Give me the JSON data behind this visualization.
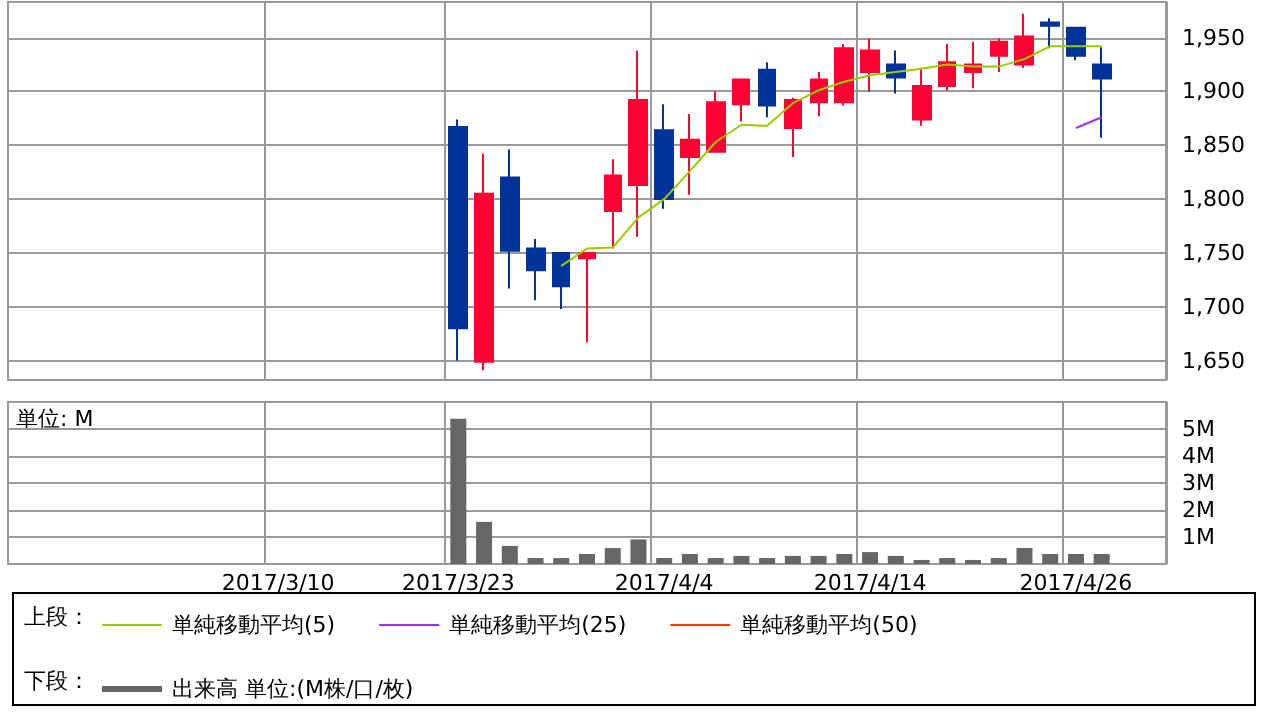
{
  "chart_data": [
    {
      "type": "candlestick",
      "categories": [
        null,
        null,
        null,
        null,
        null,
        null,
        null,
        null,
        null,
        null,
        "2017/3/10",
        null,
        null,
        null,
        null,
        null,
        null,
        "2017/3/23",
        null,
        null,
        null,
        null,
        null,
        null,
        null,
        "2017/4/4",
        null,
        null,
        null,
        null,
        null,
        null,
        null,
        "2017/4/14",
        null,
        null,
        null,
        null,
        null,
        null,
        null,
        "2017/4/26",
        null,
        null,
        null
      ],
      "ohlc": [
        null,
        null,
        null,
        null,
        null,
        null,
        null,
        null,
        null,
        null,
        null,
        null,
        null,
        null,
        null,
        null,
        null,
        [
          1867,
          1874,
          1650,
          1680
        ],
        [
          1649,
          1842,
          1641,
          1805
        ],
        [
          1820,
          1846,
          1717,
          1752
        ],
        [
          1754,
          1763,
          1706,
          1734
        ],
        [
          1750,
          1750,
          1698,
          1719
        ],
        [
          1745,
          1750,
          1667,
          1750
        ],
        [
          1789,
          1837,
          1754,
          1822
        ],
        [
          1813,
          1938,
          1765,
          1892
        ],
        [
          1864,
          1888,
          1791,
          1800
        ],
        [
          1839,
          1879,
          1804,
          1855
        ],
        [
          1844,
          1900,
          1844,
          1890
        ],
        [
          1888,
          1912,
          1872,
          1911
        ],
        [
          1920,
          1927,
          1876,
          1887
        ],
        [
          1866,
          1894,
          1839,
          1892
        ],
        [
          1890,
          1918,
          1877,
          1911
        ],
        [
          1890,
          1944,
          1887,
          1940
        ],
        [
          1918,
          1949,
          1900,
          1938
        ],
        [
          1925,
          1938,
          1898,
          1913
        ],
        [
          1874,
          1922,
          1868,
          1905
        ],
        [
          1905,
          1944,
          1901,
          1927
        ],
        [
          1918,
          1946,
          1903,
          1925
        ],
        [
          1933,
          1949,
          1918,
          1946
        ],
        [
          1925,
          1972,
          1922,
          1951
        ],
        [
          1964,
          1968,
          1940,
          1961
        ],
        [
          1959,
          1959,
          1929,
          1933
        ],
        [
          1925,
          1941,
          1857,
          1912
        ],
        null,
        null
      ],
      "colors": [
        null,
        null,
        null,
        null,
        null,
        null,
        null,
        null,
        null,
        null,
        null,
        null,
        null,
        null,
        null,
        null,
        null,
        "#003399",
        "#ff0033",
        "#003399",
        "#003399",
        "#003399",
        "#ff0033",
        "#ff0033",
        "#ff0033",
        "#003399",
        "#ff0033",
        "#ff0033",
        "#ff0033",
        "#003399",
        "#ff0033",
        "#ff0033",
        "#ff0033",
        "#ff0033",
        "#003399",
        "#ff0033",
        "#ff0033",
        "#ff0033",
        "#ff0033",
        "#ff0033",
        "#003399",
        "#003399",
        "#003399",
        null,
        null
      ],
      "series": [
        {
          "name": "単純移動平均(5)",
          "type": "line",
          "color": "#99cc00",
          "values": [
            null,
            null,
            null,
            null,
            null,
            null,
            null,
            null,
            null,
            null,
            null,
            null,
            null,
            null,
            null,
            null,
            null,
            null,
            null,
            null,
            null,
            1738,
            1754,
            1755,
            1783,
            1800,
            1826,
            1853,
            1869,
            1868,
            1889,
            1901,
            1909,
            1915,
            1918,
            1921,
            1925,
            1923,
            1923,
            1930,
            1942,
            1942,
            1942,
            null,
            null
          ]
        },
        {
          "name": "単純移動平均(25)",
          "type": "line",
          "color": "#9933ff",
          "values": [
            null,
            null,
            null,
            null,
            null,
            null,
            null,
            null,
            null,
            null,
            null,
            null,
            null,
            null,
            null,
            null,
            null,
            null,
            null,
            null,
            null,
            null,
            null,
            null,
            null,
            null,
            null,
            null,
            null,
            null,
            null,
            null,
            null,
            null,
            null,
            null,
            null,
            null,
            null,
            null,
            null,
            1866,
            1876,
            null,
            null
          ]
        },
        {
          "name": "単純移動平均(50)",
          "type": "line",
          "color": "#ff3300",
          "values": [
            null,
            null,
            null,
            null,
            null,
            null,
            null,
            null,
            null,
            null,
            null,
            null,
            null,
            null,
            null,
            null,
            null,
            null,
            null,
            null,
            null,
            null,
            null,
            null,
            null,
            null,
            null,
            null,
            null,
            null,
            null,
            null,
            null,
            null,
            null,
            null,
            null,
            null,
            null,
            null,
            null,
            null,
            null,
            null,
            null
          ]
        }
      ],
      "ylim": [
        1632,
        1983
      ],
      "yticks": [
        {
          "value": 1650,
          "label": "1,650"
        },
        {
          "value": 1700,
          "label": "1,700"
        },
        {
          "value": 1750,
          "label": "1,750"
        },
        {
          "value": 1800,
          "label": "1,800"
        },
        {
          "value": 1850,
          "label": "1,850"
        },
        {
          "value": 1900,
          "label": "1,900"
        },
        {
          "value": 1950,
          "label": "1,950"
        }
      ],
      "grid": true,
      "legend": "bottom",
      "tick_labels": "y",
      "annotations": [
        "上段："
      ]
    },
    {
      "type": "bar",
      "categories": [
        null,
        null,
        null,
        null,
        null,
        null,
        null,
        null,
        null,
        null,
        "2017/3/10",
        null,
        null,
        null,
        null,
        null,
        null,
        "2017/3/23",
        null,
        null,
        null,
        null,
        null,
        null,
        null,
        "2017/4/4",
        null,
        null,
        null,
        null,
        null,
        null,
        null,
        "2017/4/14",
        null,
        null,
        null,
        null,
        null,
        null,
        null,
        "2017/4/26",
        null,
        null,
        null
      ],
      "series": [
        {
          "name": "出来高 単位:(M株/口/枚)",
          "color": "#666666",
          "values": [
            null,
            null,
            null,
            null,
            null,
            null,
            null,
            null,
            null,
            null,
            null,
            null,
            null,
            null,
            null,
            null,
            null,
            5.38,
            1.56,
            0.67,
            0.22,
            0.22,
            0.37,
            0.59,
            0.91,
            0.22,
            0.37,
            0.22,
            0.3,
            0.22,
            0.3,
            0.3,
            0.37,
            0.44,
            0.3,
            0.15,
            0.22,
            0.15,
            0.22,
            0.59,
            0.37,
            0.37,
            0.37,
            null,
            null
          ]
        }
      ],
      "ylim": [
        0,
        6
      ],
      "yticks": [
        {
          "value": 1,
          "label": "1M"
        },
        {
          "value": 2,
          "label": "2M"
        },
        {
          "value": 3,
          "label": "3M"
        },
        {
          "value": 4,
          "label": "4M"
        },
        {
          "value": 5,
          "label": "5M"
        }
      ],
      "grid": true,
      "legend": "bottom",
      "annotations": [
        "単位: M",
        "下段："
      ]
    }
  ]
}
